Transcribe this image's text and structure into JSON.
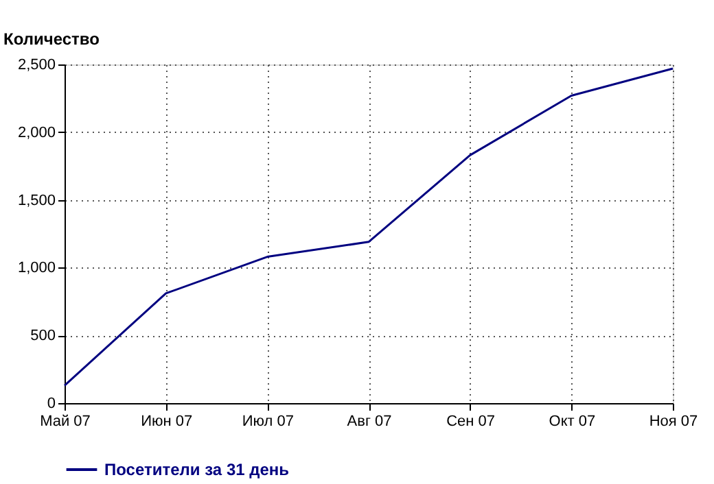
{
  "chart_data": {
    "type": "line",
    "ylabel": "Количество",
    "categories": [
      "Май 07",
      "Июн 07",
      "Июл 07",
      "Авг 07",
      "Сен 07",
      "Окт 07",
      "Ноя 07"
    ],
    "series": [
      {
        "name": "Посетители за 31 день",
        "color": "#000080",
        "values": [
          130,
          810,
          1080,
          1190,
          1830,
          2270,
          2470
        ]
      }
    ],
    "ylim": [
      0,
      2500
    ],
    "yticks": [
      {
        "value": 0,
        "label": "0"
      },
      {
        "value": 500,
        "label": "500"
      },
      {
        "value": 1000,
        "label": "1,000"
      },
      {
        "value": 1500,
        "label": "1,500"
      },
      {
        "value": 2000,
        "label": "2,000"
      },
      {
        "value": 2500,
        "label": "2,500"
      }
    ],
    "grid": true,
    "legend": "bottom",
    "marker": "none",
    "line_style": "solid"
  }
}
